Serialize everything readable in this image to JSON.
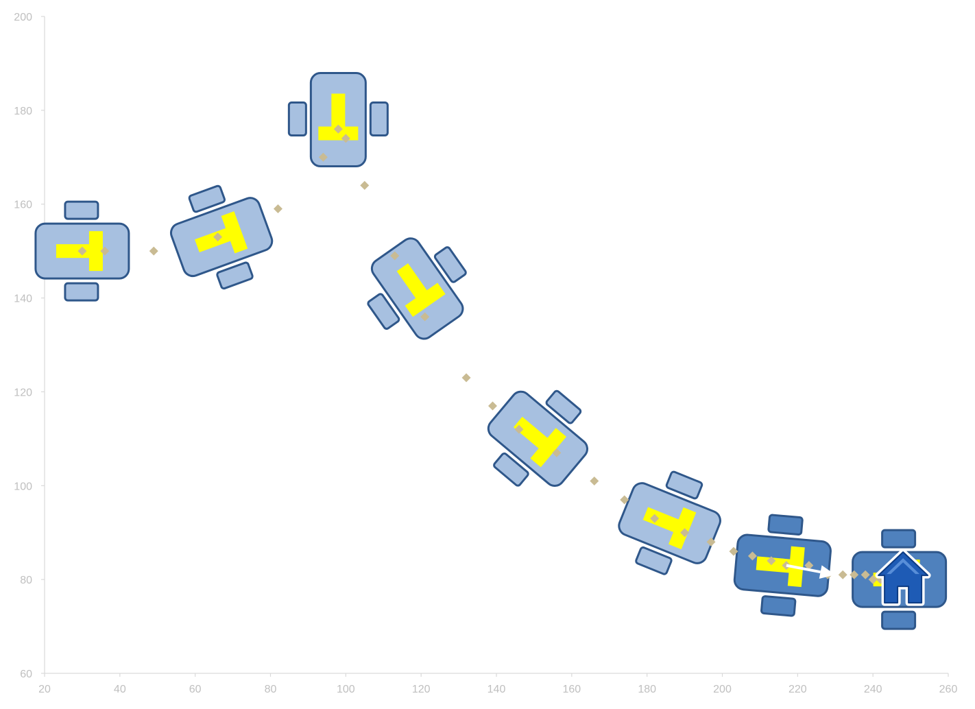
{
  "chart_data": {
    "type": "scatter",
    "title": "",
    "xlabel": "",
    "ylabel": "",
    "xlim": [
      20,
      260
    ],
    "ylim": [
      60,
      200
    ],
    "x_ticks": [
      20,
      40,
      60,
      80,
      100,
      120,
      140,
      160,
      180,
      200,
      220,
      240,
      260
    ],
    "y_ticks": [
      60,
      80,
      100,
      120,
      140,
      160,
      180,
      200
    ],
    "grid": false,
    "legend": "none",
    "marker": "diamond",
    "marker_color": "#c9bb93",
    "series": [
      {
        "points": [
          [
            30,
            150
          ],
          [
            36,
            150
          ],
          [
            49,
            150
          ],
          [
            66,
            153
          ],
          [
            82,
            159
          ],
          [
            94,
            170
          ],
          [
            98,
            176
          ],
          [
            100,
            174
          ],
          [
            105,
            164
          ],
          [
            113,
            149
          ],
          [
            121,
            136
          ],
          [
            132,
            123
          ],
          [
            139,
            117
          ],
          [
            146,
            112
          ],
          [
            156,
            107
          ],
          [
            166,
            101
          ],
          [
            174,
            97
          ],
          [
            182,
            93
          ],
          [
            190,
            90
          ],
          [
            197,
            88
          ],
          [
            203,
            86
          ],
          [
            208,
            85
          ],
          [
            213,
            84
          ],
          [
            217,
            83
          ],
          [
            223,
            83
          ],
          [
            228,
            81
          ],
          [
            232,
            81
          ],
          [
            235,
            81
          ],
          [
            238,
            81
          ],
          [
            240,
            80
          ],
          [
            242,
            80
          ],
          [
            245,
            81
          ]
        ]
      }
    ],
    "annotations": [
      {
        "kind": "robot",
        "x": 30,
        "y": 150,
        "heading_deg": 0,
        "style": "light"
      },
      {
        "kind": "robot",
        "x": 67,
        "y": 153,
        "heading_deg": -20,
        "style": "light"
      },
      {
        "kind": "robot",
        "x": 98,
        "y": 178,
        "heading_deg": 90,
        "style": "light"
      },
      {
        "kind": "robot",
        "x": 119,
        "y": 142,
        "heading_deg": 55,
        "style": "light"
      },
      {
        "kind": "robot",
        "x": 151,
        "y": 110,
        "heading_deg": 40,
        "style": "light"
      },
      {
        "kind": "robot",
        "x": 186,
        "y": 92,
        "heading_deg": 22,
        "style": "light"
      },
      {
        "kind": "robot",
        "x": 216,
        "y": 83,
        "heading_deg": 5,
        "style": "dark"
      },
      {
        "kind": "robot",
        "x": 247,
        "y": 80,
        "heading_deg": 0,
        "style": "dark"
      },
      {
        "kind": "arrow",
        "from": [
          217,
          83
        ],
        "to": [
          230,
          81
        ],
        "color": "#ffffff"
      },
      {
        "kind": "home-icon",
        "x": 248,
        "y": 80,
        "color": "#1e5bb5"
      }
    ],
    "colors": {
      "robot_light_fill": "#a7c0e0",
      "robot_dark_fill": "#4f81bd",
      "robot_stroke": "#2f578a",
      "t_marker": "#ffff00",
      "axis": "#d9d9d9",
      "tick_text": "#bfbfbf"
    }
  }
}
